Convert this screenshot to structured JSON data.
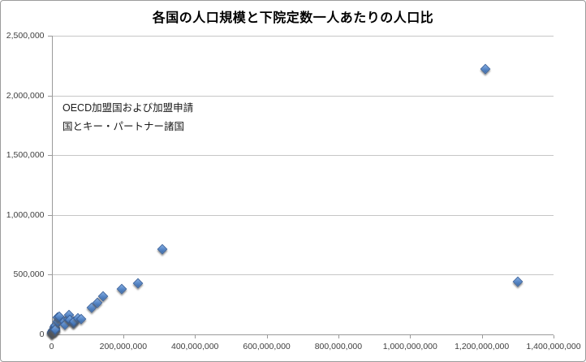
{
  "chart_data": {
    "type": "scatter",
    "title": "各国の人口規模と下院定数一人あたりの人口比",
    "annotation": {
      "line1": "OECD加盟国および加盟申請",
      "line2": "国とキー・パートナー諸国"
    },
    "xlabel": "",
    "ylabel": "",
    "grid": "horizontal",
    "legend": "none",
    "marker": {
      "shape": "diamond",
      "fill_color": "#4f81bd",
      "border_color": "#38619c"
    },
    "x_axis": {
      "min": 0,
      "max": 1400000000,
      "tick_step": 200000000,
      "tick_labels": [
        "0",
        "200,000,000",
        "400,000,000",
        "600,000,000",
        "800,000,000",
        "1,000,000,000",
        "1,200,000,000",
        "1,400,000,000"
      ]
    },
    "y_axis": {
      "min": 0,
      "max": 2500000,
      "tick_step": 500000,
      "tick_labels": [
        "0",
        "500,000",
        "1,000,000",
        "1,500,000",
        "2,000,000",
        "2,500,000"
      ]
    },
    "points": [
      [
        320000,
        5000
      ],
      [
        500000,
        8000
      ],
      [
        1300000,
        13000
      ],
      [
        2100000,
        23000
      ],
      [
        4400000,
        36000
      ],
      [
        4500000,
        27000
      ],
      [
        4900000,
        29000
      ],
      [
        5400000,
        27000
      ],
      [
        5450000,
        36000
      ],
      [
        5500000,
        31000
      ],
      [
        7600000,
        63000
      ],
      [
        7800000,
        39000
      ],
      [
        8400000,
        46000
      ],
      [
        9400000,
        27000
      ],
      [
        10000000,
        26000
      ],
      [
        10500000,
        53000
      ],
      [
        10600000,
        46000
      ],
      [
        10800000,
        72000
      ],
      [
        11300000,
        38000
      ],
      [
        16600000,
        111000
      ],
      [
        17000000,
        142000
      ],
      [
        22300000,
        147000
      ],
      [
        34000000,
        110000
      ],
      [
        38200000,
        83000
      ],
      [
        46000000,
        131000
      ],
      [
        48900000,
        164000
      ],
      [
        50000000,
        125000
      ],
      [
        60300000,
        96000
      ],
      [
        62000000,
        95000
      ],
      [
        63000000,
        109000
      ],
      [
        73000000,
        133000
      ],
      [
        81800000,
        131000
      ],
      [
        112300000,
        224000
      ],
      [
        128000000,
        267000
      ],
      [
        143000000,
        318000
      ],
      [
        195000000,
        380000
      ],
      [
        240000000,
        429000
      ],
      [
        309000000,
        710000
      ],
      [
        1210000000,
        2220000
      ],
      [
        1300000000,
        440000
      ]
    ]
  }
}
